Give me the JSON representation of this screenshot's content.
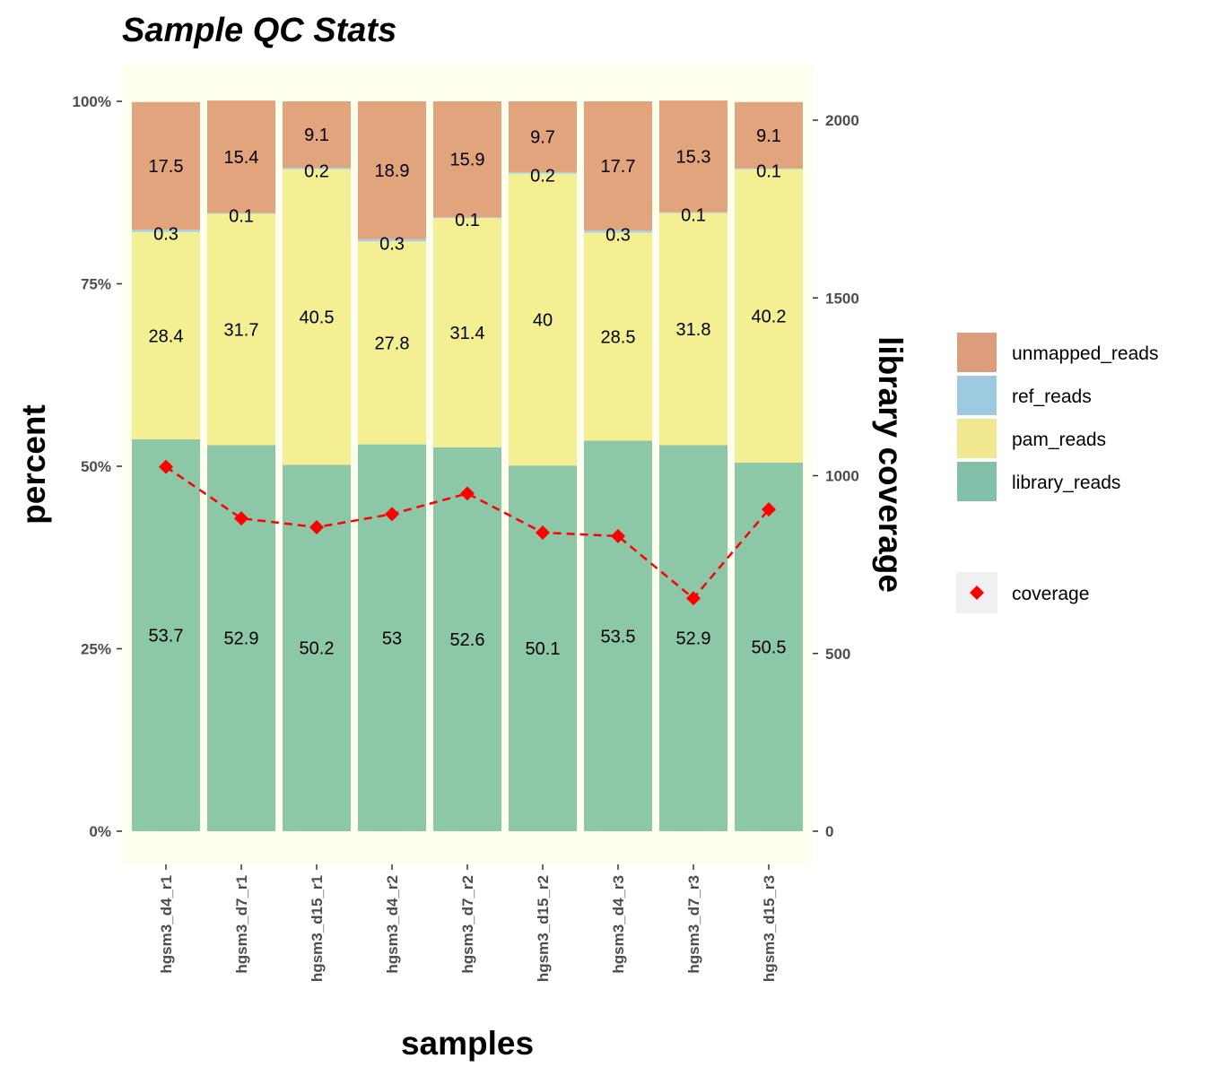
{
  "chart_data": {
    "type": "bar",
    "title": "Sample QC Stats",
    "xlabel": "samples",
    "ylabel": "percent",
    "y2label": "library coverage",
    "categories": [
      "hgsm3_d4_r1",
      "hgsm3_d7_r1",
      "hgsm3_d15_r1",
      "hgsm3_d4_r2",
      "hgsm3_d7_r2",
      "hgsm3_d15_r2",
      "hgsm3_d4_r3",
      "hgsm3_d7_r3",
      "hgsm3_d15_r3"
    ],
    "stacked": true,
    "series": [
      {
        "name": "library_reads",
        "color": "#8cc8a8",
        "values": [
          53.7,
          52.9,
          50.2,
          53,
          52.6,
          50.1,
          53.5,
          52.9,
          50.5
        ],
        "labels": [
          "53.7",
          "52.9",
          "50.2",
          "53",
          "52.6",
          "50.1",
          "53.5",
          "52.9",
          "50.5"
        ]
      },
      {
        "name": "pam_reads",
        "color": "#f5ef93",
        "values": [
          28.4,
          31.7,
          40.5,
          27.8,
          31.4,
          40,
          28.5,
          31.8,
          40.2
        ],
        "labels": [
          "28.4",
          "31.7",
          "40.5",
          "27.8",
          "31.4",
          "40",
          "28.5",
          "31.8",
          "40.2"
        ]
      },
      {
        "name": "ref_reads",
        "color": "#a3d0ec",
        "values": [
          0.3,
          0.1,
          0.2,
          0.3,
          0.1,
          0.2,
          0.3,
          0.1,
          0.1
        ],
        "labels": [
          "0.3",
          "0.1",
          "0.2",
          "0.3",
          "0.1",
          "0.2",
          "0.3",
          "0.1",
          "0.1"
        ]
      },
      {
        "name": "unmapped_reads",
        "color": "#e2a47c",
        "values": [
          17.5,
          15.4,
          9.1,
          18.9,
          15.9,
          9.7,
          17.7,
          15.3,
          9.1
        ],
        "labels": [
          "17.5",
          "15.4",
          "9.1",
          "18.9",
          "15.9",
          "9.7",
          "17.7",
          "15.3",
          "9.1"
        ]
      }
    ],
    "legend_swatch_colors": {
      "unmapped_reads": "#dd9c7c",
      "ref_reads": "#9ecae1",
      "pam_reads": "#efe88f",
      "library_reads": "#82c0a9"
    },
    "line_series": {
      "name": "coverage",
      "color": "#ff0000",
      "style": "dashed",
      "marker": "diamond",
      "values": [
        1025,
        880,
        855,
        892,
        950,
        840,
        830,
        655,
        905
      ]
    },
    "ylim": [
      0,
      100
    ],
    "yticks": [
      "0%",
      "25%",
      "50%",
      "75%",
      "100%"
    ],
    "y2lim": [
      0,
      2000
    ],
    "y2ticks": [
      "0",
      "500",
      "1000",
      "1500",
      "2000"
    ],
    "legend_position": "right",
    "legend_order": [
      "unmapped_reads",
      "ref_reads",
      "pam_reads",
      "library_reads"
    ],
    "background": "#fffff0",
    "grid": false
  }
}
